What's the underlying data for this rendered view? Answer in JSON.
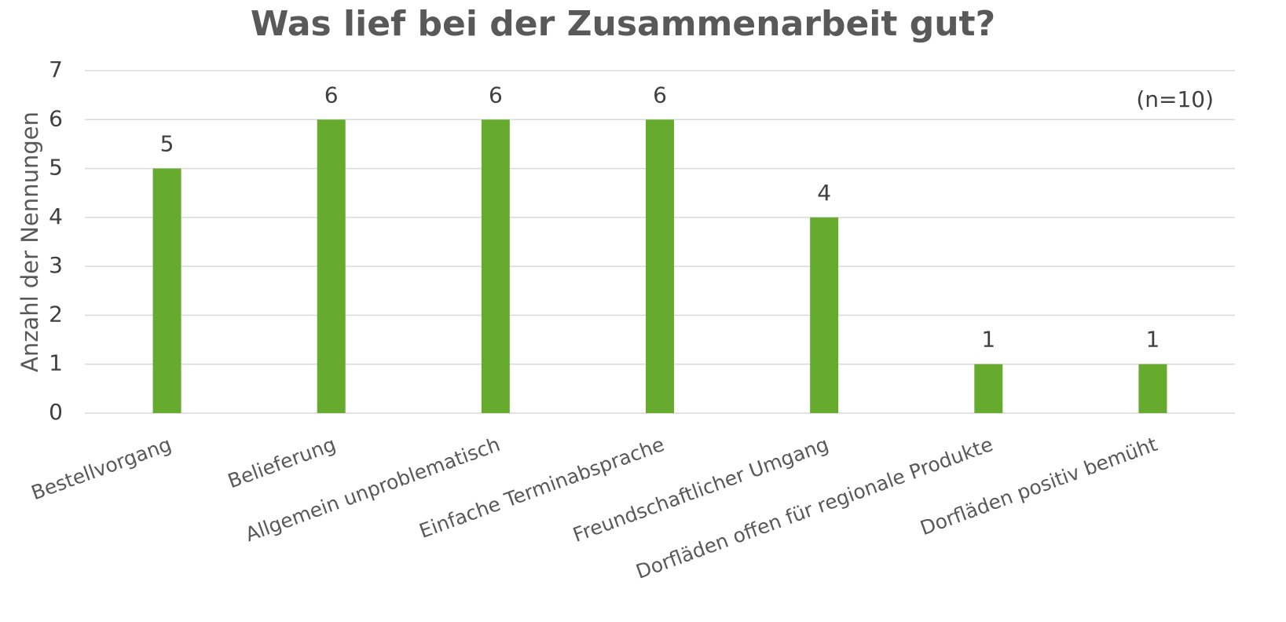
{
  "chart_data": {
    "type": "bar",
    "title": "Was lief bei der Zusammenarbeit gut?",
    "y_label": "Anzahl der Nennungen",
    "annotation": "(n=10)",
    "categories": [
      "Bestellvorgang",
      "Belieferung",
      "Allgemein unproblematisch",
      "Einfache Terminabsprache",
      "Freundschaftlicher Umgang",
      "Dorfläden offen für regionale Produkte",
      "Dorfläden positiv bemüht"
    ],
    "values": [
      5,
      6,
      6,
      6,
      4,
      1,
      1
    ],
    "color": "#66ab2e",
    "ylim": [
      0,
      7
    ],
    "yticks": [
      0,
      1,
      2,
      3,
      4,
      5,
      6,
      7
    ],
    "grid": true
  }
}
